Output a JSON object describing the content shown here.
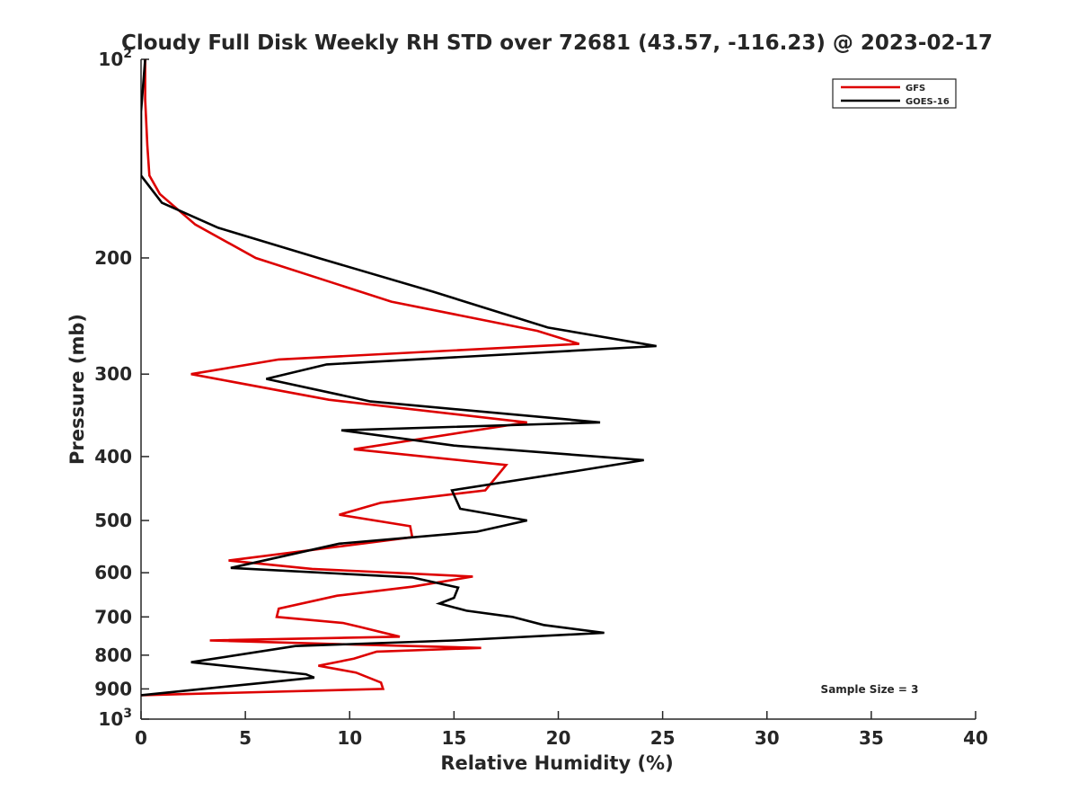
{
  "chart_data": {
    "type": "line",
    "title": "Cloudy Full Disk Weekly RH STD over 72681 (43.57, -116.23) @ 2023-02-17",
    "xlabel": "Relative Humidity (%)",
    "ylabel": "Pressure (mb)",
    "xlim": [
      0,
      40
    ],
    "ylim": [
      100,
      1000
    ],
    "y_scale": "log",
    "y_reversed": true,
    "grid": false,
    "legend_position": "top-right",
    "x_ticks": [
      0,
      5,
      10,
      15,
      20,
      25,
      30,
      35,
      40
    ],
    "y_ticks": [
      {
        "value": 100,
        "base": "10",
        "exp": "2"
      },
      {
        "value": 200,
        "label": "200"
      },
      {
        "value": 300,
        "label": "300"
      },
      {
        "value": 400,
        "label": "400"
      },
      {
        "value": 500,
        "label": "500"
      },
      {
        "value": 600,
        "label": "600"
      },
      {
        "value": 700,
        "label": "700"
      },
      {
        "value": 800,
        "label": "800"
      },
      {
        "value": 900,
        "label": "900"
      },
      {
        "value": 1000,
        "base": "10",
        "exp": "3"
      }
    ],
    "annotation": "Sample Size = 3",
    "series": [
      {
        "name": "GFS",
        "color": "#dd0000",
        "points": [
          [
            0.2,
            100
          ],
          [
            0.2,
            115
          ],
          [
            0.3,
            135
          ],
          [
            0.4,
            150
          ],
          [
            0.9,
            160
          ],
          [
            2.6,
            178
          ],
          [
            5.5,
            200
          ],
          [
            12,
            233
          ],
          [
            19,
            258
          ],
          [
            21,
            270
          ],
          [
            6.6,
            285
          ],
          [
            2.4,
            300
          ],
          [
            9,
            328
          ],
          [
            18.5,
            355
          ],
          [
            10.2,
            390
          ],
          [
            17.5,
            412
          ],
          [
            16.5,
            450
          ],
          [
            11.5,
            470
          ],
          [
            9.5,
            490
          ],
          [
            12.9,
            510
          ],
          [
            13,
            530
          ],
          [
            4.2,
            575
          ],
          [
            8.2,
            592
          ],
          [
            15.9,
            608
          ],
          [
            13,
            630
          ],
          [
            9.4,
            650
          ],
          [
            6.6,
            680
          ],
          [
            6.5,
            700
          ],
          [
            9.7,
            715
          ],
          [
            10.5,
            725
          ],
          [
            12.4,
            750
          ],
          [
            3.3,
            760
          ],
          [
            9.6,
            770
          ],
          [
            16.3,
            780
          ],
          [
            11.3,
            790
          ],
          [
            10.2,
            810
          ],
          [
            8.5,
            830
          ],
          [
            10.3,
            850
          ],
          [
            11.5,
            880
          ],
          [
            11.6,
            900
          ],
          [
            0,
            920
          ]
        ]
      },
      {
        "name": "GOES-16",
        "color": "#000000",
        "points": [
          [
            0.2,
            100
          ],
          [
            0,
            120
          ],
          [
            0,
            150
          ],
          [
            1,
            165
          ],
          [
            3.7,
            180
          ],
          [
            8.5,
            200
          ],
          [
            14,
            225
          ],
          [
            19.5,
            255
          ],
          [
            24.7,
            272
          ],
          [
            8.9,
            290
          ],
          [
            6,
            305
          ],
          [
            11,
            330
          ],
          [
            22,
            355
          ],
          [
            9.6,
            365
          ],
          [
            15,
            385
          ],
          [
            24.1,
            405
          ],
          [
            21,
            420
          ],
          [
            14.9,
            450
          ],
          [
            15.3,
            480
          ],
          [
            18.5,
            500
          ],
          [
            16.1,
            520
          ],
          [
            9.5,
            542
          ],
          [
            4.3,
            590
          ],
          [
            13,
            610
          ],
          [
            15.2,
            632
          ],
          [
            15,
            655
          ],
          [
            14.3,
            668
          ],
          [
            15.6,
            685
          ],
          [
            17.8,
            700
          ],
          [
            19.3,
            720
          ],
          [
            22.2,
            740
          ],
          [
            15,
            760
          ],
          [
            7.4,
            775
          ],
          [
            2.4,
            820
          ],
          [
            7.9,
            855
          ],
          [
            8.3,
            865
          ],
          [
            6,
            880
          ],
          [
            0,
            920
          ]
        ]
      }
    ]
  }
}
